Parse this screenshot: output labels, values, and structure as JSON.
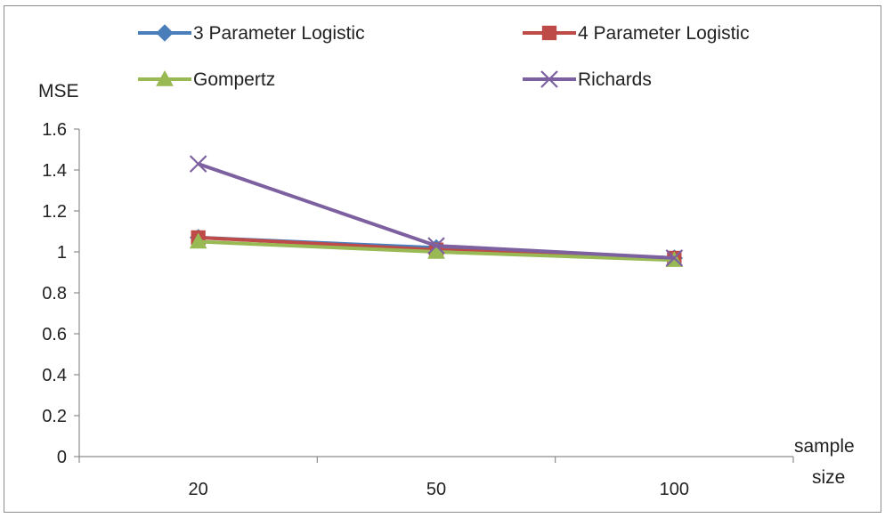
{
  "chart_data": {
    "type": "line",
    "title": "",
    "ylabel": "MSE",
    "xlabel_lines": [
      "sample",
      "size"
    ],
    "categories": [
      "20",
      "50",
      "100"
    ],
    "ylim": [
      0,
      1.6
    ],
    "yticks": [
      "0",
      "0.2",
      "0.4",
      "0.6",
      "0.8",
      "1",
      "1.2",
      "1.4",
      "1.6"
    ],
    "grid": false,
    "legend_position": "top",
    "series": [
      {
        "name": "3 Parameter Logistic",
        "values": [
          1.07,
          1.02,
          0.97
        ],
        "color": "#4a7ebb",
        "marker": "diamond"
      },
      {
        "name": "4 Parameter Logistic",
        "values": [
          1.07,
          1.01,
          0.97
        ],
        "color": "#be4b48",
        "marker": "square"
      },
      {
        "name": "Gompertz",
        "values": [
          1.05,
          1.0,
          0.96
        ],
        "color": "#98b954",
        "marker": "triangle"
      },
      {
        "name": "Richards",
        "values": [
          1.43,
          1.03,
          0.97
        ],
        "color": "#7d60a0",
        "marker": "x"
      }
    ]
  }
}
